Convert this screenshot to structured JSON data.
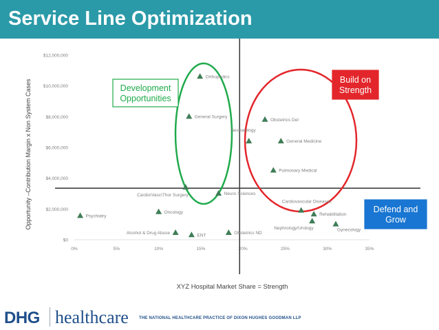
{
  "page": {
    "title": "Service Line Optimization",
    "colors": {
      "title_bar": "#2b9aa8",
      "accent_green": "#1faa4b",
      "accent_red": "#e3262b",
      "accent_blue": "#1976d2",
      "marker": "#3f7d57"
    }
  },
  "callouts": {
    "development": "Development\nOpportunities",
    "build": "Build on\nStrength",
    "defend": "Defend and\nGrow"
  },
  "chart_data": {
    "type": "scatter",
    "xlabel": "XYZ Hospital Market Share = Strength",
    "ylabel": "Opportunity –Contribution Margin x Non System Cases",
    "xlim": [
      0,
      0.35
    ],
    "ylim": [
      0,
      12000000
    ],
    "x_ticks": [
      0,
      0.05,
      0.1,
      0.15,
      0.2,
      0.25,
      0.3,
      0.35
    ],
    "x_tick_labels": [
      "0%",
      "5%",
      "10%",
      "15%",
      "20%",
      "25%",
      "30%",
      "35%"
    ],
    "y_ticks": [
      0,
      2000000,
      4000000,
      6000000,
      8000000,
      10000000,
      12000000
    ],
    "y_tick_labels": [
      "$0",
      "$2,000,000",
      "$4,000,000",
      "$6,000,000",
      "$8,000,000",
      "$10,000,000",
      "$12,000,000"
    ],
    "grid": false,
    "quadrant_lines": {
      "x": 0.196,
      "y": 3350000
    },
    "points": [
      {
        "label": "Orthopedics",
        "x": 0.149,
        "y": 10600000,
        "label_pos": "right"
      },
      {
        "label": "General Surgery",
        "x": 0.136,
        "y": 8000000,
        "label_pos": "right"
      },
      {
        "label": "Obstetrics Del",
        "x": 0.226,
        "y": 7800000,
        "label_pos": "right"
      },
      {
        "label": "Neonatology",
        "x": 0.207,
        "y": 6400000,
        "label_pos": "above-left"
      },
      {
        "label": "General Medicine",
        "x": 0.245,
        "y": 6400000,
        "label_pos": "right"
      },
      {
        "label": "Pulmonary Medical",
        "x": 0.236,
        "y": 4500000,
        "label_pos": "right"
      },
      {
        "label": "Cardio\\Vasc\\Thor Surgery",
        "x": 0.132,
        "y": 3400000,
        "label_pos": "below-left"
      },
      {
        "label": "Neuro Sciences",
        "x": 0.171,
        "y": 3000000,
        "label_pos": "right"
      },
      {
        "label": "Cardiovascular Diseases",
        "x": 0.269,
        "y": 1900000,
        "label_pos": "above-right"
      },
      {
        "label": "Rehabilitation",
        "x": 0.284,
        "y": 1650000,
        "label_pos": "right"
      },
      {
        "label": "Oncology",
        "x": 0.1,
        "y": 1800000,
        "label_pos": "right"
      },
      {
        "label": "Psychiatry",
        "x": 0.007,
        "y": 1550000,
        "label_pos": "right"
      },
      {
        "label": "Nephrology/Urology",
        "x": 0.282,
        "y": 1200000,
        "label_pos": "below-left"
      },
      {
        "label": "Gynecology",
        "x": 0.31,
        "y": 1000000,
        "label_pos": "below-right"
      },
      {
        "label": "Alcohol & Drug Abuse",
        "x": 0.12,
        "y": 450000,
        "label_pos": "left"
      },
      {
        "label": "ENT",
        "x": 0.139,
        "y": 300000,
        "label_pos": "right"
      },
      {
        "label": "Obstetrics ND",
        "x": 0.183,
        "y": 450000,
        "label_pos": "right"
      }
    ]
  },
  "footer": {
    "logo_primary": "DHG",
    "logo_secondary": "healthcare",
    "tagline": "THE NATIONAL HEALTHCARE PRACTICE OF DIXON HUGHES GOODMAN LLP"
  }
}
